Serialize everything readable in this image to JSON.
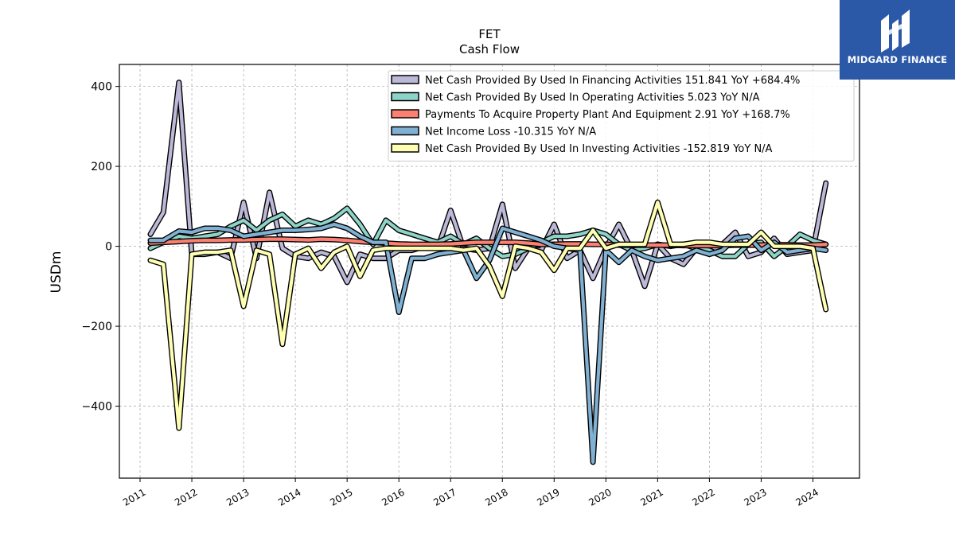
{
  "chart_data": {
    "type": "line",
    "title": "FET",
    "subtitle": "Cash Flow",
    "ylabel": "USDm",
    "xlabel": "",
    "ylim": [
      -580,
      455
    ],
    "xlim": [
      2010.6,
      2024.9
    ],
    "yticks": [
      400,
      200,
      0,
      -200,
      -400
    ],
    "ytick_labels": [
      "400",
      "200",
      "0",
      "−200",
      "−400"
    ],
    "xticks": [
      2011,
      2012,
      2013,
      2014,
      2015,
      2016,
      2017,
      2018,
      2019,
      2020,
      2021,
      2022,
      2023,
      2024
    ],
    "xtick_labels": [
      "2011",
      "2012",
      "2013",
      "2014",
      "2015",
      "2016",
      "2017",
      "2018",
      "2019",
      "2020",
      "2021",
      "2022",
      "2023",
      "2024"
    ],
    "grid": true,
    "legend_position": "top-right",
    "series": [
      {
        "name": "Net Cash Provided By Used In Financing Activities  151.841 YoY +684.4%",
        "color": "#bcb8d8",
        "points": [
          [
            2011.2,
            30
          ],
          [
            2011.45,
            85
          ],
          [
            2011.75,
            410
          ],
          [
            2012.0,
            -20
          ],
          [
            2012.25,
            -20
          ],
          [
            2012.5,
            -15
          ],
          [
            2012.75,
            -30
          ],
          [
            2013.0,
            110
          ],
          [
            2013.25,
            -30
          ],
          [
            2013.5,
            135
          ],
          [
            2013.75,
            -5
          ],
          [
            2014.0,
            -25
          ],
          [
            2014.25,
            -30
          ],
          [
            2014.5,
            -15
          ],
          [
            2014.75,
            -25
          ],
          [
            2015.0,
            -90
          ],
          [
            2015.25,
            -20
          ],
          [
            2015.5,
            -30
          ],
          [
            2015.75,
            -30
          ],
          [
            2016.0,
            -10
          ],
          [
            2016.25,
            -10
          ],
          [
            2016.5,
            0
          ],
          [
            2016.75,
            -5
          ],
          [
            2017.0,
            90
          ],
          [
            2017.25,
            -5
          ],
          [
            2017.5,
            -10
          ],
          [
            2017.75,
            -5
          ],
          [
            2018.0,
            105
          ],
          [
            2018.25,
            -55
          ],
          [
            2018.5,
            -5
          ],
          [
            2018.75,
            -10
          ],
          [
            2019.0,
            55
          ],
          [
            2019.25,
            -30
          ],
          [
            2019.5,
            -10
          ],
          [
            2019.75,
            -80
          ],
          [
            2020.0,
            -5
          ],
          [
            2020.25,
            55
          ],
          [
            2020.5,
            -10
          ],
          [
            2020.75,
            -100
          ],
          [
            2021.0,
            5
          ],
          [
            2021.25,
            -30
          ],
          [
            2021.5,
            -45
          ],
          [
            2021.75,
            -5
          ],
          [
            2022.0,
            -15
          ],
          [
            2022.25,
            5
          ],
          [
            2022.5,
            35
          ],
          [
            2022.75,
            -25
          ],
          [
            2023.0,
            -15
          ],
          [
            2023.25,
            20
          ],
          [
            2023.5,
            -20
          ],
          [
            2023.75,
            -15
          ],
          [
            2024.0,
            -10
          ],
          [
            2024.25,
            158
          ]
        ]
      },
      {
        "name": "Net Cash Provided By Used In Operating Activities  5.023 YoY N/A",
        "color": "#8dd3c7",
        "points": [
          [
            2011.2,
            -5
          ],
          [
            2011.45,
            10
          ],
          [
            2011.75,
            25
          ],
          [
            2012.0,
            20
          ],
          [
            2012.25,
            25
          ],
          [
            2012.5,
            30
          ],
          [
            2012.75,
            50
          ],
          [
            2013.0,
            65
          ],
          [
            2013.25,
            40
          ],
          [
            2013.5,
            65
          ],
          [
            2013.75,
            80
          ],
          [
            2014.0,
            50
          ],
          [
            2014.25,
            65
          ],
          [
            2014.5,
            55
          ],
          [
            2014.75,
            70
          ],
          [
            2015.0,
            95
          ],
          [
            2015.25,
            55
          ],
          [
            2015.5,
            5
          ],
          [
            2015.75,
            65
          ],
          [
            2016.0,
            40
          ],
          [
            2016.25,
            30
          ],
          [
            2016.5,
            20
          ],
          [
            2016.75,
            10
          ],
          [
            2017.0,
            25
          ],
          [
            2017.25,
            5
          ],
          [
            2017.5,
            20
          ],
          [
            2017.75,
            -5
          ],
          [
            2018.0,
            -25
          ],
          [
            2018.25,
            -20
          ],
          [
            2018.5,
            -5
          ],
          [
            2018.75,
            10
          ],
          [
            2019.0,
            25
          ],
          [
            2019.25,
            25
          ],
          [
            2019.5,
            30
          ],
          [
            2019.75,
            40
          ],
          [
            2020.0,
            30
          ],
          [
            2020.25,
            5
          ],
          [
            2020.5,
            -10
          ],
          [
            2020.75,
            -5
          ],
          [
            2021.0,
            5
          ],
          [
            2021.25,
            0
          ],
          [
            2021.5,
            5
          ],
          [
            2021.75,
            -5
          ],
          [
            2022.0,
            -10
          ],
          [
            2022.25,
            -25
          ],
          [
            2022.5,
            -25
          ],
          [
            2022.75,
            5
          ],
          [
            2023.0,
            10
          ],
          [
            2023.25,
            -25
          ],
          [
            2023.5,
            0
          ],
          [
            2023.75,
            30
          ],
          [
            2024.0,
            15
          ],
          [
            2024.25,
            5
          ]
        ]
      },
      {
        "name": "Payments To Acquire Property Plant And Equipment  2.91 YoY +168.7%",
        "color": "#fb8072",
        "points": [
          [
            2011.2,
            8
          ],
          [
            2011.45,
            10
          ],
          [
            2011.75,
            12
          ],
          [
            2012.0,
            14
          ],
          [
            2012.25,
            15
          ],
          [
            2012.5,
            15
          ],
          [
            2012.75,
            16
          ],
          [
            2013.0,
            16
          ],
          [
            2013.25,
            17
          ],
          [
            2013.5,
            18
          ],
          [
            2013.75,
            18
          ],
          [
            2014.0,
            17
          ],
          [
            2014.25,
            16
          ],
          [
            2014.5,
            18
          ],
          [
            2014.75,
            17
          ],
          [
            2015.0,
            15
          ],
          [
            2015.25,
            12
          ],
          [
            2015.5,
            10
          ],
          [
            2015.75,
            8
          ],
          [
            2016.0,
            6
          ],
          [
            2016.25,
            5
          ],
          [
            2016.5,
            5
          ],
          [
            2016.75,
            5
          ],
          [
            2017.0,
            6
          ],
          [
            2017.25,
            8
          ],
          [
            2017.5,
            10
          ],
          [
            2017.75,
            10
          ],
          [
            2018.0,
            10
          ],
          [
            2018.25,
            10
          ],
          [
            2018.5,
            8
          ],
          [
            2018.75,
            5
          ],
          [
            2019.0,
            5
          ],
          [
            2019.25,
            6
          ],
          [
            2019.5,
            6
          ],
          [
            2019.75,
            5
          ],
          [
            2020.0,
            5
          ],
          [
            2020.25,
            3
          ],
          [
            2020.5,
            3
          ],
          [
            2020.75,
            3
          ],
          [
            2021.0,
            3
          ],
          [
            2021.25,
            3
          ],
          [
            2021.5,
            2
          ],
          [
            2021.75,
            2
          ],
          [
            2022.0,
            2
          ],
          [
            2022.25,
            2
          ],
          [
            2022.5,
            3
          ],
          [
            2022.75,
            3
          ],
          [
            2023.0,
            3
          ],
          [
            2023.25,
            4
          ],
          [
            2023.5,
            4
          ],
          [
            2023.75,
            3
          ],
          [
            2024.0,
            3
          ],
          [
            2024.25,
            5
          ]
        ]
      },
      {
        "name": "Net Income Loss  -10.315 YoY N/A",
        "color": "#80b1d3",
        "points": [
          [
            2011.2,
            15
          ],
          [
            2011.45,
            15
          ],
          [
            2011.75,
            38
          ],
          [
            2012.0,
            35
          ],
          [
            2012.25,
            45
          ],
          [
            2012.5,
            45
          ],
          [
            2012.75,
            40
          ],
          [
            2013.0,
            25
          ],
          [
            2013.25,
            30
          ],
          [
            2013.5,
            35
          ],
          [
            2013.75,
            40
          ],
          [
            2014.0,
            40
          ],
          [
            2014.25,
            42
          ],
          [
            2014.5,
            45
          ],
          [
            2014.75,
            55
          ],
          [
            2015.0,
            45
          ],
          [
            2015.25,
            25
          ],
          [
            2015.5,
            10
          ],
          [
            2015.75,
            10
          ],
          [
            2016.0,
            -165
          ],
          [
            2016.25,
            -30
          ],
          [
            2016.5,
            -30
          ],
          [
            2016.75,
            -20
          ],
          [
            2017.0,
            -15
          ],
          [
            2017.25,
            -10
          ],
          [
            2017.5,
            -80
          ],
          [
            2017.75,
            -35
          ],
          [
            2018.0,
            45
          ],
          [
            2018.25,
            35
          ],
          [
            2018.5,
            25
          ],
          [
            2018.75,
            15
          ],
          [
            2019.0,
            0
          ],
          [
            2019.25,
            -5
          ],
          [
            2019.5,
            -10
          ],
          [
            2019.75,
            -540
          ],
          [
            2020.0,
            -10
          ],
          [
            2020.25,
            -40
          ],
          [
            2020.5,
            -10
          ],
          [
            2020.75,
            -25
          ],
          [
            2021.0,
            -35
          ],
          [
            2021.25,
            -30
          ],
          [
            2021.5,
            -25
          ],
          [
            2021.75,
            -10
          ],
          [
            2022.0,
            -20
          ],
          [
            2022.25,
            -10
          ],
          [
            2022.5,
            20
          ],
          [
            2022.75,
            25
          ],
          [
            2023.0,
            -10
          ],
          [
            2023.25,
            10
          ],
          [
            2023.5,
            -15
          ],
          [
            2023.75,
            -10
          ],
          [
            2024.0,
            -5
          ],
          [
            2024.25,
            -10
          ]
        ]
      },
      {
        "name": "Net Cash Provided By Used In Investing Activities  -152.819 YoY N/A",
        "color": "#ffffb3",
        "points": [
          [
            2011.2,
            -35
          ],
          [
            2011.45,
            -45
          ],
          [
            2011.75,
            -455
          ],
          [
            2012.0,
            -20
          ],
          [
            2012.25,
            -15
          ],
          [
            2012.5,
            -15
          ],
          [
            2012.75,
            -10
          ],
          [
            2013.0,
            -150
          ],
          [
            2013.25,
            -10
          ],
          [
            2013.5,
            -20
          ],
          [
            2013.75,
            -245
          ],
          [
            2014.0,
            -20
          ],
          [
            2014.25,
            -5
          ],
          [
            2014.5,
            -55
          ],
          [
            2014.75,
            -15
          ],
          [
            2015.0,
            0
          ],
          [
            2015.25,
            -75
          ],
          [
            2015.5,
            -10
          ],
          [
            2015.75,
            -5
          ],
          [
            2016.0,
            -5
          ],
          [
            2016.25,
            -5
          ],
          [
            2016.5,
            -5
          ],
          [
            2016.75,
            -5
          ],
          [
            2017.0,
            -5
          ],
          [
            2017.25,
            -10
          ],
          [
            2017.5,
            -5
          ],
          [
            2017.75,
            -50
          ],
          [
            2018.0,
            -125
          ],
          [
            2018.25,
            0
          ],
          [
            2018.5,
            -5
          ],
          [
            2018.75,
            -15
          ],
          [
            2019.0,
            -60
          ],
          [
            2019.25,
            -5
          ],
          [
            2019.5,
            -5
          ],
          [
            2019.75,
            40
          ],
          [
            2020.0,
            -5
          ],
          [
            2020.25,
            5
          ],
          [
            2020.5,
            5
          ],
          [
            2020.75,
            5
          ],
          [
            2021.0,
            110
          ],
          [
            2021.25,
            5
          ],
          [
            2021.5,
            5
          ],
          [
            2021.75,
            10
          ],
          [
            2022.0,
            10
          ],
          [
            2022.25,
            5
          ],
          [
            2022.5,
            5
          ],
          [
            2022.75,
            5
          ],
          [
            2023.0,
            35
          ],
          [
            2023.25,
            0
          ],
          [
            2023.5,
            0
          ],
          [
            2023.75,
            0
          ],
          [
            2024.0,
            -5
          ],
          [
            2024.25,
            -158
          ]
        ]
      }
    ]
  },
  "logo": {
    "text": "MIDGARD FINANCE",
    "background": "#2c58a8"
  }
}
